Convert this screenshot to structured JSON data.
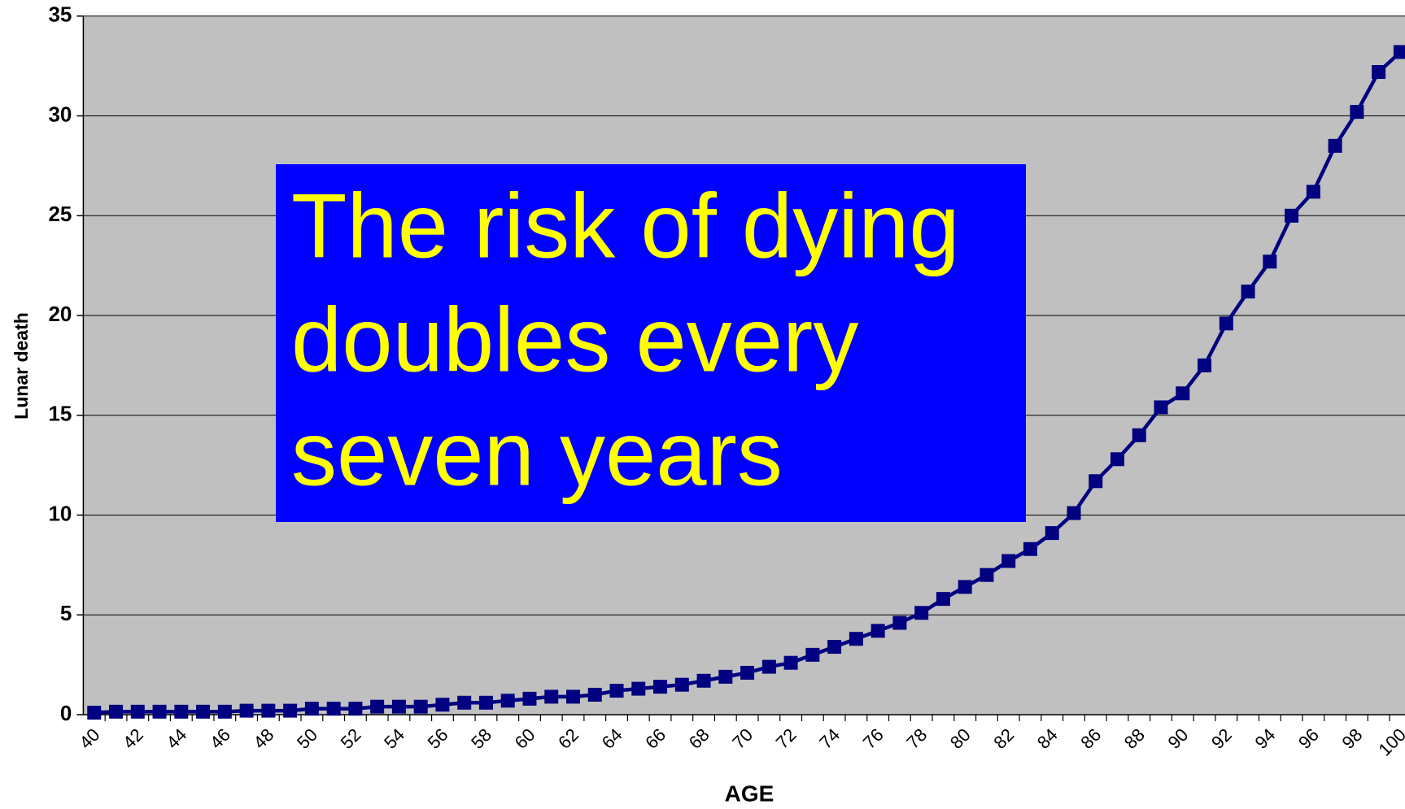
{
  "chart_data": {
    "type": "line",
    "xlabel": "AGE",
    "ylabel": "Lunar death",
    "annotation": [
      "The risk of dying",
      "doubles every",
      "seven years"
    ],
    "categories": [
      "40",
      null,
      "42",
      null,
      "44",
      null,
      "46",
      null,
      "48",
      null,
      "50",
      null,
      "52",
      null,
      "54",
      null,
      "56",
      null,
      "58",
      null,
      "60",
      null,
      "62",
      null,
      "64",
      null,
      "66",
      null,
      "68",
      null,
      "70",
      null,
      "72",
      null,
      "74",
      null,
      "76",
      null,
      "78",
      null,
      "80",
      null,
      "82",
      null,
      "84",
      null,
      "86",
      null,
      "88",
      null,
      "90",
      null,
      "92",
      null,
      "94",
      null,
      "96",
      null,
      "98",
      null,
      "100"
    ],
    "series": [
      {
        "name": "Lunar death",
        "color": "#000080",
        "values": [
          0.1,
          0.15,
          0.15,
          0.15,
          0.15,
          0.15,
          0.15,
          0.2,
          0.2,
          0.2,
          0.3,
          0.3,
          0.3,
          0.4,
          0.4,
          0.4,
          0.5,
          0.6,
          0.6,
          0.7,
          0.8,
          0.9,
          0.9,
          1.0,
          1.2,
          1.3,
          1.4,
          1.5,
          1.7,
          1.9,
          2.1,
          2.4,
          2.6,
          3.0,
          3.4,
          3.8,
          4.2,
          4.6,
          5.1,
          5.8,
          6.4,
          7.0,
          7.7,
          8.3,
          9.1,
          10.1,
          11.7,
          12.8,
          14.0,
          15.4,
          16.1,
          17.5,
          19.6,
          21.2,
          22.7,
          25.0,
          26.2,
          28.5,
          30.2,
          32.2,
          33.2
        ]
      }
    ],
    "ylim": [
      0,
      35
    ],
    "yticks": [
      0,
      5,
      10,
      15,
      20,
      25,
      30,
      35
    ],
    "grid": true,
    "background": "#c0c0c0",
    "annotation_color": "#0000ff",
    "annotation_text_color": "#ffff00"
  }
}
